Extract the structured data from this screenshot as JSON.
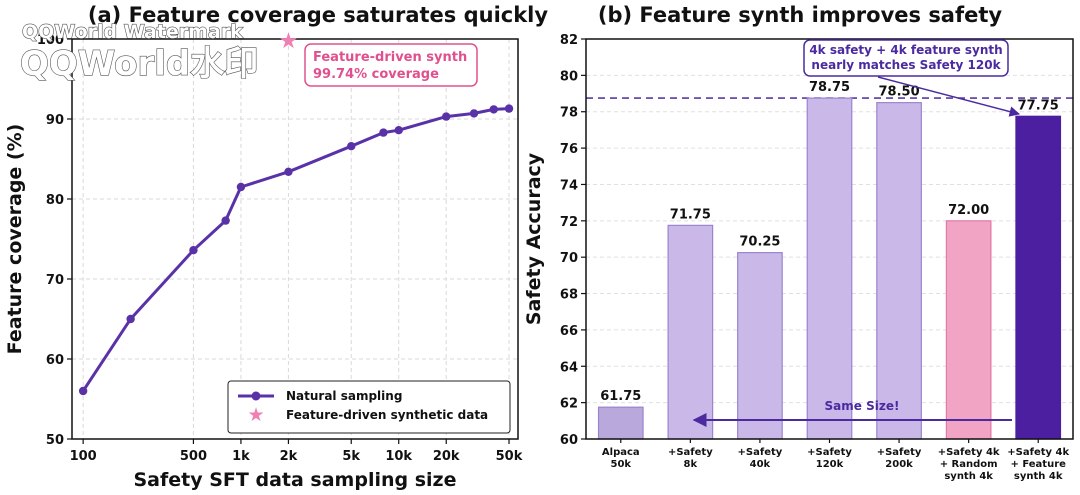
{
  "watermark": {
    "line1": "QQWorld Watermark",
    "line2": "QQWorld水印"
  },
  "colors": {
    "line": "#5a32a8",
    "star": "#f07fb2",
    "bar_light": "#c9b8e8",
    "bar_light_edge": "#9b84cf",
    "bar_alpaca": "#b9a8dc",
    "bar_random": "#f2a4c4",
    "bar_random_edge": "#e07aa6",
    "bar_dark": "#4b1fa0",
    "ref_line": "#5a3aa8",
    "pink_text": "#e0508e",
    "purple_text": "#4b2aa0"
  },
  "chart_data": [
    {
      "type": "line",
      "title": "(a) Feature coverage saturates quickly",
      "xlabel": "Safety SFT data sampling size",
      "ylabel": "Feature coverage (%)",
      "xscale": "log",
      "xlim": [
        85,
        57000
      ],
      "ylim": [
        50,
        100
      ],
      "xticks": [
        100,
        500,
        1000,
        2000,
        5000,
        10000,
        20000,
        50000
      ],
      "xtick_labels": [
        "100",
        "500",
        "1k",
        "2k",
        "5k",
        "10k",
        "20k",
        "50k"
      ],
      "yticks": [
        50,
        60,
        70,
        80,
        90,
        100
      ],
      "ytick_labels": [
        "50",
        "60",
        "70",
        "80",
        "90",
        "100"
      ],
      "grid": true,
      "legend_position": "bottom-right",
      "series": [
        {
          "name": "Natural sampling",
          "x": [
            100,
            200,
            500,
            800,
            1000,
            2000,
            5000,
            8000,
            10000,
            20000,
            30000,
            40000,
            50000
          ],
          "y": [
            56.0,
            65.0,
            73.6,
            77.3,
            81.5,
            83.4,
            86.6,
            88.3,
            88.6,
            90.3,
            90.7,
            91.2,
            91.3
          ]
        },
        {
          "name": "Feature-driven synthetic data",
          "x": [
            2000
          ],
          "y": [
            99.74
          ]
        }
      ],
      "annotations": [
        {
          "text_line1": "Feature-driven synth",
          "text_line2": "99.74% coverage"
        }
      ]
    },
    {
      "type": "bar",
      "title": "(b) Feature synth improves safety",
      "xlabel": "",
      "ylabel": "Safety Accuracy",
      "ylim": [
        60,
        82
      ],
      "yticks": [
        60,
        62,
        64,
        66,
        68,
        70,
        72,
        74,
        76,
        78,
        80,
        82
      ],
      "grid": true,
      "categories": [
        [
          "Alpaca",
          "50k"
        ],
        [
          "+Safety",
          "8k"
        ],
        [
          "+Safety",
          "40k"
        ],
        [
          "+Safety",
          "120k"
        ],
        [
          "+Safety",
          "200k"
        ],
        [
          "+Safety 4k",
          "+ Random",
          "synth 4k"
        ],
        [
          "+Safety 4k",
          "+ Feature",
          "synth 4k"
        ]
      ],
      "values": [
        61.75,
        71.75,
        70.25,
        78.75,
        78.5,
        72.0,
        77.75
      ],
      "value_labels": [
        "61.75",
        "71.75",
        "70.25",
        "78.75",
        "78.50",
        "72.00",
        "77.75"
      ],
      "reference_line": 78.75,
      "annotations": [
        {
          "line1": "4k safety + 4k feature synth",
          "line2": "nearly matches Safety 120k"
        },
        {
          "text": "Same Size!"
        }
      ]
    }
  ]
}
